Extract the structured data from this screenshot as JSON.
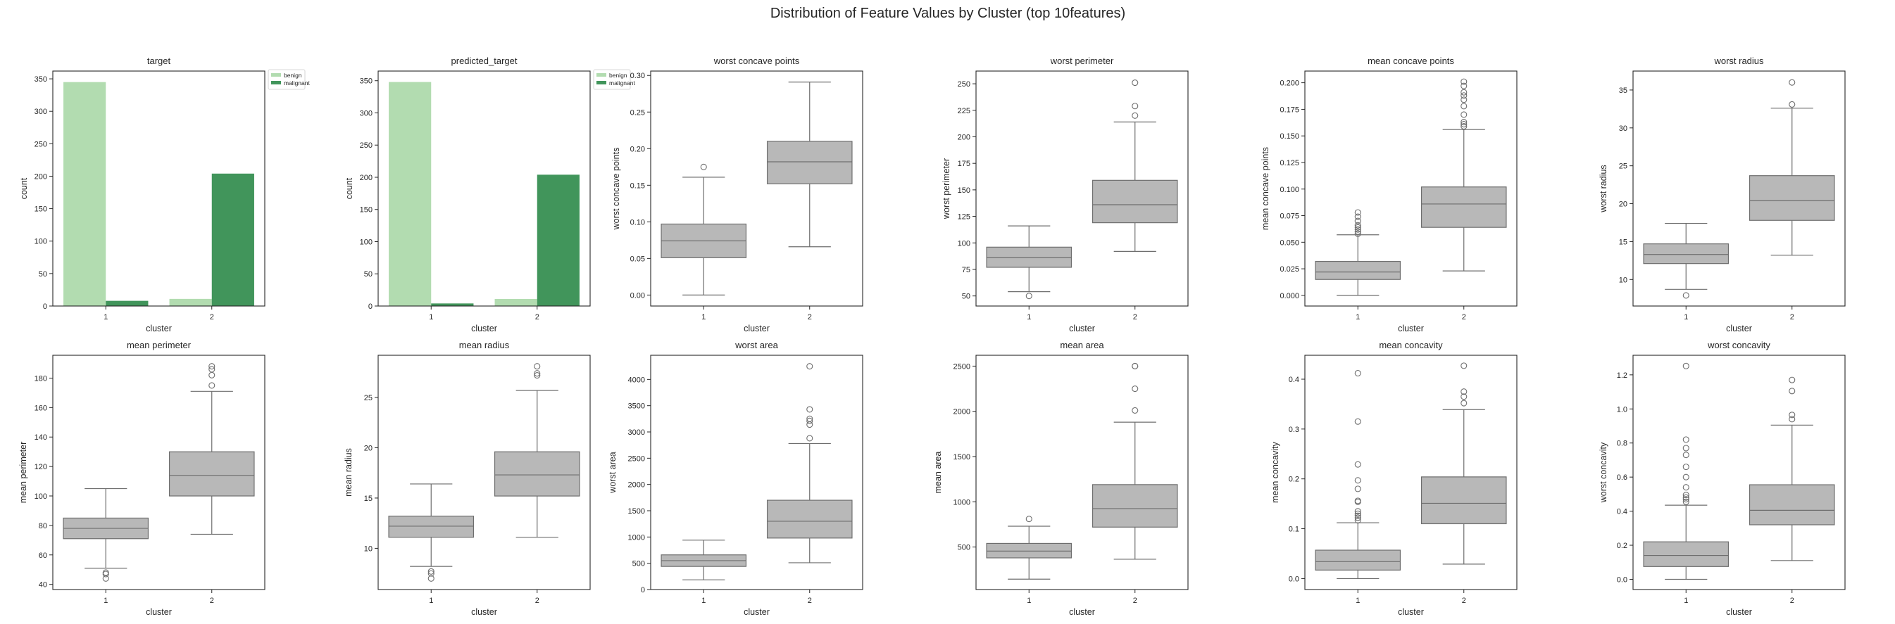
{
  "figure": {
    "suptitle": "Distribution of Feature Values by Cluster (top 10features)"
  },
  "colors": {
    "benign": "#b2dcb0",
    "malignant": "#41955b",
    "box_fill": "#b8b8b8",
    "box_edge": "#6e6e6e"
  },
  "chart_data": [
    {
      "type": "bar",
      "title": "target",
      "xlabel": "cluster",
      "ylabel": "count",
      "categories": [
        "1",
        "2"
      ],
      "series": [
        {
          "name": "benign",
          "values": [
            345,
            11
          ]
        },
        {
          "name": "malignant",
          "values": [
            8,
            204
          ]
        }
      ],
      "ylim": [
        0,
        362
      ],
      "yticks": [
        0,
        50,
        100,
        150,
        200,
        250,
        300,
        350
      ],
      "legend": "outside top-right"
    },
    {
      "type": "bar",
      "title": "predicted_target",
      "xlabel": "cluster",
      "ylabel": "count",
      "categories": [
        "1",
        "2"
      ],
      "series": [
        {
          "name": "benign",
          "values": [
            348,
            11
          ]
        },
        {
          "name": "malignant",
          "values": [
            4,
            204
          ]
        }
      ],
      "ylim": [
        0,
        365
      ],
      "yticks": [
        0,
        50,
        100,
        150,
        200,
        250,
        300,
        350
      ],
      "legend": "outside top-right"
    },
    {
      "type": "box",
      "title": "worst concave points",
      "xlabel": "cluster",
      "ylabel": "worst concave points",
      "categories": [
        "1",
        "2"
      ],
      "boxes": [
        {
          "whislo": 0.0,
          "q1": 0.051,
          "med": 0.074,
          "q3": 0.097,
          "whishi": 0.161,
          "fliers": [
            0.175
          ]
        },
        {
          "whislo": 0.066,
          "q1": 0.152,
          "med": 0.182,
          "q3": 0.21,
          "whishi": 0.291,
          "fliers": []
        }
      ],
      "ylim": [
        -0.015,
        0.306
      ],
      "yticks": [
        0.0,
        0.05,
        0.1,
        0.15,
        0.2,
        0.25,
        0.3
      ],
      "decimals": 2
    },
    {
      "type": "box",
      "title": "worst perimeter",
      "xlabel": "cluster",
      "ylabel": "worst perimeter",
      "categories": [
        "1",
        "2"
      ],
      "boxes": [
        {
          "whislo": 54,
          "q1": 77,
          "med": 86,
          "q3": 96,
          "whishi": 116,
          "fliers": [
            50
          ]
        },
        {
          "whislo": 92,
          "q1": 119,
          "med": 136,
          "q3": 159,
          "whishi": 214,
          "fliers": [
            220,
            229,
            251
          ]
        }
      ],
      "ylim": [
        40.5,
        262
      ],
      "yticks": [
        50,
        75,
        100,
        125,
        150,
        175,
        200,
        225,
        250
      ],
      "decimals": 0
    },
    {
      "type": "box",
      "title": "mean concave points",
      "xlabel": "cluster",
      "ylabel": "mean concave points",
      "categories": [
        "1",
        "2"
      ],
      "boxes": [
        {
          "whislo": 0.0,
          "q1": 0.015,
          "med": 0.022,
          "q3": 0.032,
          "whishi": 0.057,
          "fliers": [
            0.058,
            0.06,
            0.062,
            0.064,
            0.066,
            0.07,
            0.074,
            0.078
          ]
        },
        {
          "whislo": 0.023,
          "q1": 0.064,
          "med": 0.086,
          "q3": 0.102,
          "whishi": 0.156,
          "fliers": [
            0.159,
            0.161,
            0.163,
            0.17,
            0.178,
            0.184,
            0.188,
            0.191,
            0.197,
            0.201
          ]
        }
      ],
      "ylim": [
        -0.01,
        0.211
      ],
      "yticks": [
        0.0,
        0.025,
        0.05,
        0.075,
        0.1,
        0.125,
        0.15,
        0.175,
        0.2
      ],
      "decimals": 3
    },
    {
      "type": "box",
      "title": "worst radius",
      "xlabel": "cluster",
      "ylabel": "worst radius",
      "categories": [
        "1",
        "2"
      ],
      "boxes": [
        {
          "whislo": 8.7,
          "q1": 12.1,
          "med": 13.3,
          "q3": 14.7,
          "whishi": 17.4,
          "fliers": [
            7.9
          ]
        },
        {
          "whislo": 13.2,
          "q1": 17.8,
          "med": 20.4,
          "q3": 23.7,
          "whishi": 32.6,
          "fliers": [
            33.1,
            36.0
          ]
        }
      ],
      "ylim": [
        6.5,
        37.5
      ],
      "yticks": [
        10,
        15,
        20,
        25,
        30,
        35
      ],
      "decimals": 0
    },
    {
      "type": "box",
      "title": "mean perimeter",
      "xlabel": "cluster",
      "ylabel": "mean perimeter",
      "categories": [
        "1",
        "2"
      ],
      "boxes": [
        {
          "whislo": 51,
          "q1": 71,
          "med": 78,
          "q3": 85,
          "whishi": 105,
          "fliers": [
            47,
            48,
            44
          ]
        },
        {
          "whislo": 74,
          "q1": 100,
          "med": 114,
          "q3": 130,
          "whishi": 171,
          "fliers": [
            175,
            182,
            186,
            188
          ]
        }
      ],
      "ylim": [
        36.5,
        195.5
      ],
      "yticks": [
        40,
        60,
        80,
        100,
        120,
        140,
        160,
        180
      ],
      "decimals": 0
    },
    {
      "type": "box",
      "title": "mean radius",
      "xlabel": "cluster",
      "ylabel": "mean radius",
      "categories": [
        "1",
        "2"
      ],
      "boxes": [
        {
          "whislo": 8.2,
          "q1": 11.1,
          "med": 12.2,
          "q3": 13.2,
          "whishi": 16.4,
          "fliers": [
            7.7,
            7.5,
            7.0
          ]
        },
        {
          "whislo": 11.1,
          "q1": 15.2,
          "med": 17.3,
          "q3": 19.6,
          "whishi": 25.7,
          "fliers": [
            27.2,
            27.4,
            28.1
          ]
        }
      ],
      "ylim": [
        5.9,
        29.2
      ],
      "yticks": [
        10,
        15,
        20,
        25
      ],
      "decimals": 0
    },
    {
      "type": "box",
      "title": "worst area",
      "xlabel": "cluster",
      "ylabel": "worst area",
      "categories": [
        "1",
        "2"
      ],
      "boxes": [
        {
          "whislo": 185,
          "q1": 440,
          "med": 550,
          "q3": 660,
          "whishi": 940,
          "fliers": []
        },
        {
          "whislo": 510,
          "q1": 980,
          "med": 1300,
          "q3": 1700,
          "whishi": 2780,
          "fliers": [
            2880,
            3140,
            3210,
            3250,
            3430,
            4250
          ]
        }
      ],
      "ylim": [
        0,
        4460
      ],
      "yticks": [
        0,
        500,
        1000,
        1500,
        2000,
        2500,
        3000,
        3500,
        4000
      ],
      "decimals": 0
    },
    {
      "type": "box",
      "title": "mean area",
      "xlabel": "cluster",
      "ylabel": "mean area",
      "categories": [
        "1",
        "2"
      ],
      "boxes": [
        {
          "whislo": 145,
          "q1": 380,
          "med": 455,
          "q3": 540,
          "whishi": 730,
          "fliers": [
            810
          ]
        },
        {
          "whislo": 365,
          "q1": 720,
          "med": 925,
          "q3": 1190,
          "whishi": 1880,
          "fliers": [
            2010,
            2250,
            2500,
            2500
          ]
        }
      ],
      "ylim": [
        30,
        2620
      ],
      "yticks": [
        500,
        1000,
        1500,
        2000,
        2500
      ],
      "decimals": 0
    },
    {
      "type": "box",
      "title": "mean concavity",
      "xlabel": "cluster",
      "ylabel": "mean concavity",
      "categories": [
        "1",
        "2"
      ],
      "boxes": [
        {
          "whislo": 0.0,
          "q1": 0.017,
          "med": 0.034,
          "q3": 0.057,
          "whishi": 0.112,
          "fliers": [
            0.117,
            0.122,
            0.126,
            0.13,
            0.135,
            0.154,
            0.156,
            0.18,
            0.197,
            0.229,
            0.315,
            0.412
          ]
        },
        {
          "whislo": 0.029,
          "q1": 0.11,
          "med": 0.151,
          "q3": 0.204,
          "whishi": 0.339,
          "fliers": [
            0.352,
            0.365,
            0.375,
            0.427
          ]
        }
      ],
      "ylim": [
        -0.022,
        0.448
      ],
      "yticks": [
        0.0,
        0.1,
        0.2,
        0.3,
        0.4
      ],
      "decimals": 1
    },
    {
      "type": "box",
      "title": "worst concavity",
      "xlabel": "cluster",
      "ylabel": "worst concavity",
      "categories": [
        "1",
        "2"
      ],
      "boxes": [
        {
          "whislo": 0.0,
          "q1": 0.075,
          "med": 0.14,
          "q3": 0.22,
          "whishi": 0.435,
          "fliers": [
            0.455,
            0.47,
            0.48,
            0.495,
            0.54,
            0.6,
            0.66,
            0.73,
            0.77,
            0.82,
            1.252
          ]
        },
        {
          "whislo": 0.11,
          "q1": 0.32,
          "med": 0.405,
          "q3": 0.555,
          "whishi": 0.905,
          "fliers": [
            0.94,
            0.965,
            1.105,
            1.17
          ]
        }
      ],
      "ylim": [
        -0.06,
        1.315
      ],
      "yticks": [
        0.0,
        0.2,
        0.4,
        0.6,
        0.8,
        1.0,
        1.2
      ],
      "decimals": 1
    }
  ]
}
